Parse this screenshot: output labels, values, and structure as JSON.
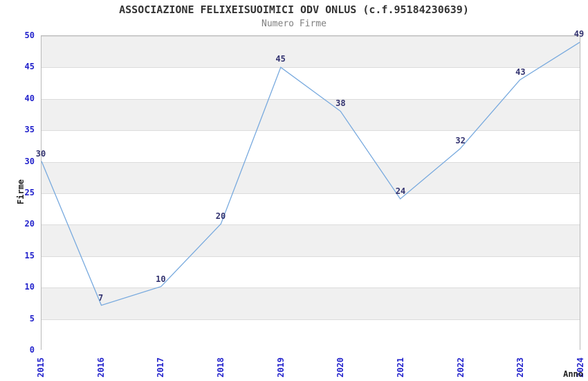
{
  "chart_data": {
    "type": "line",
    "title": "ASSOCIAZIONE FELIXEISUOIMICI ODV ONLUS (c.f.95184230639)",
    "subtitle": "Numero Firme",
    "xlabel": "Anno",
    "ylabel": "Firme",
    "categories": [
      "2015",
      "2016",
      "2017",
      "2018",
      "2019",
      "2020",
      "2021",
      "2022",
      "2023",
      "2024"
    ],
    "values": [
      30,
      7,
      10,
      20,
      45,
      38,
      24,
      32,
      43,
      49
    ],
    "ylim": [
      0,
      50
    ],
    "ytick_step": 5,
    "xtick_rotation": -90,
    "grid": "alternating-horizontal-bands",
    "legend": "none",
    "markers": "none",
    "point_labels_visible": true,
    "colors": {
      "line": "#77a9de",
      "tick_label": "#2323cc",
      "point_label": "#333370",
      "title": "#333333",
      "subtitle": "#808080",
      "axis_title": "#222222",
      "band_shaded": "#f0f0f0",
      "band_plain": "#ffffff",
      "band_boundary": "#dcdcdc",
      "plot_border": "#b9b9b9",
      "background": "#ffffff"
    }
  }
}
